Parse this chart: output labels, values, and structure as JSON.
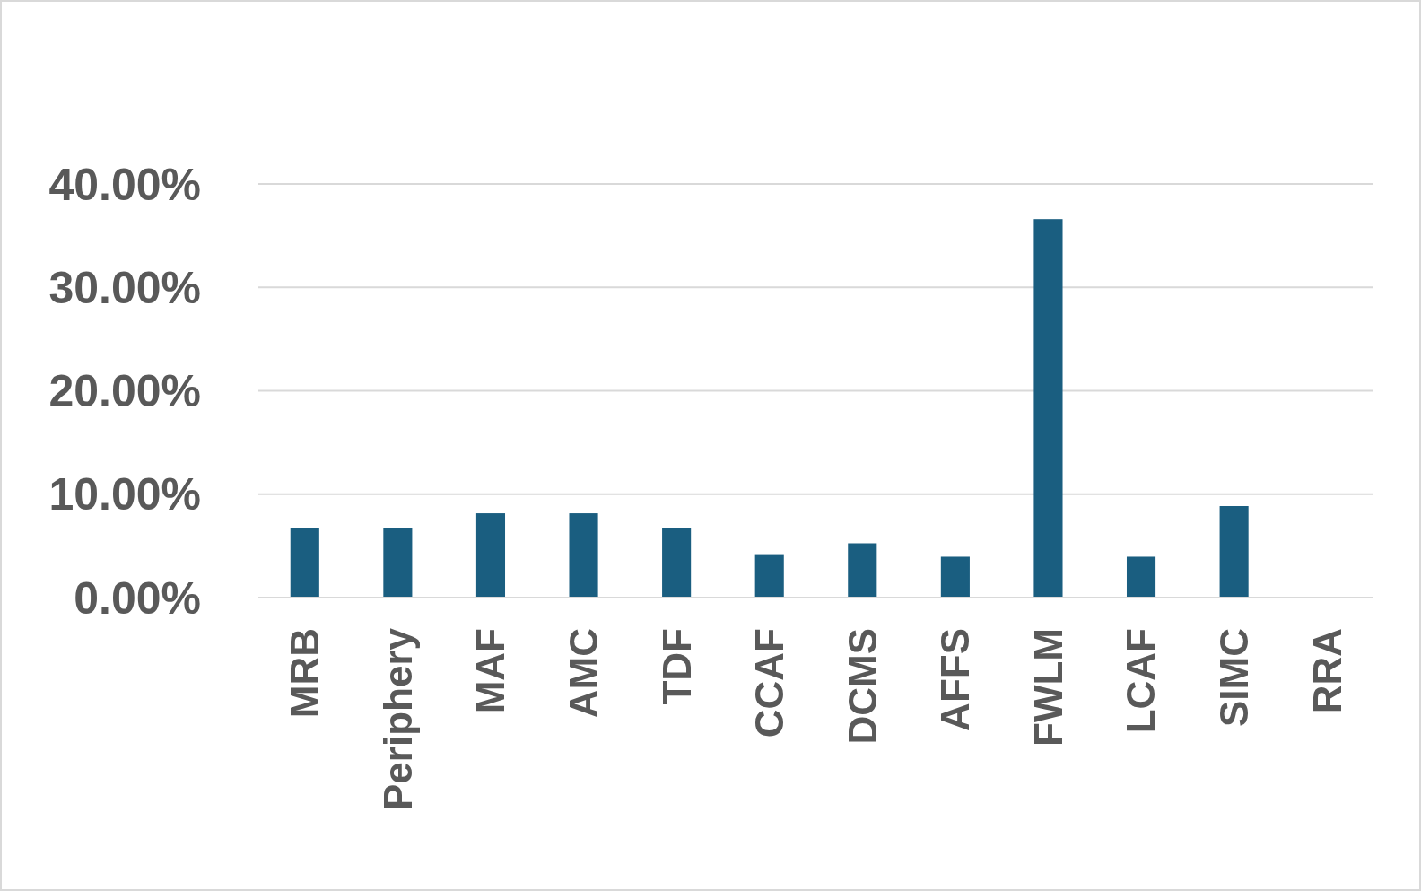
{
  "chart_data": {
    "type": "bar",
    "categories": [
      "MRB",
      "Periphery",
      "MAF",
      "AMC",
      "TDF",
      "CCAF",
      "DCMS",
      "AFFS",
      "FWLM",
      "LCAF",
      "SIMC",
      "RRA"
    ],
    "values": [
      6.75,
      6.75,
      8.15,
      8.15,
      6.75,
      4.2,
      5.25,
      3.95,
      36.6,
      3.95,
      8.85,
      0
    ],
    "color": "#1a5e80",
    "ylim": [
      0,
      40
    ],
    "yticks": [
      {
        "value": 0,
        "label": "0.00%"
      },
      {
        "value": 10,
        "label": "10.00%"
      },
      {
        "value": 20,
        "label": "20.00%"
      },
      {
        "value": 30,
        "label": "30.00%"
      },
      {
        "value": 40,
        "label": "40.00%"
      }
    ],
    "grid": "y"
  }
}
